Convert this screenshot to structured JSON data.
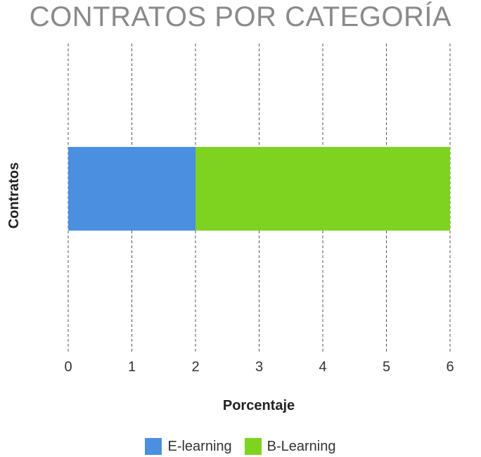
{
  "chart_data": {
    "type": "bar",
    "orientation": "horizontal",
    "stacked": true,
    "title": "CONTRATOS POR CATEGORÍA",
    "xlabel": "Porcentaje",
    "ylabel": "Contratos",
    "categories": [
      ""
    ],
    "series": [
      {
        "name": "E-learning",
        "values": [
          2
        ],
        "color": "#4a8fe0"
      },
      {
        "name": "B-Learning",
        "values": [
          4
        ],
        "color": "#7ed321"
      }
    ],
    "xlim": [
      0,
      6
    ],
    "x_ticks": [
      "0",
      "1",
      "2",
      "3",
      "4",
      "5",
      "6"
    ],
    "grid": true,
    "legend_position": "bottom"
  }
}
